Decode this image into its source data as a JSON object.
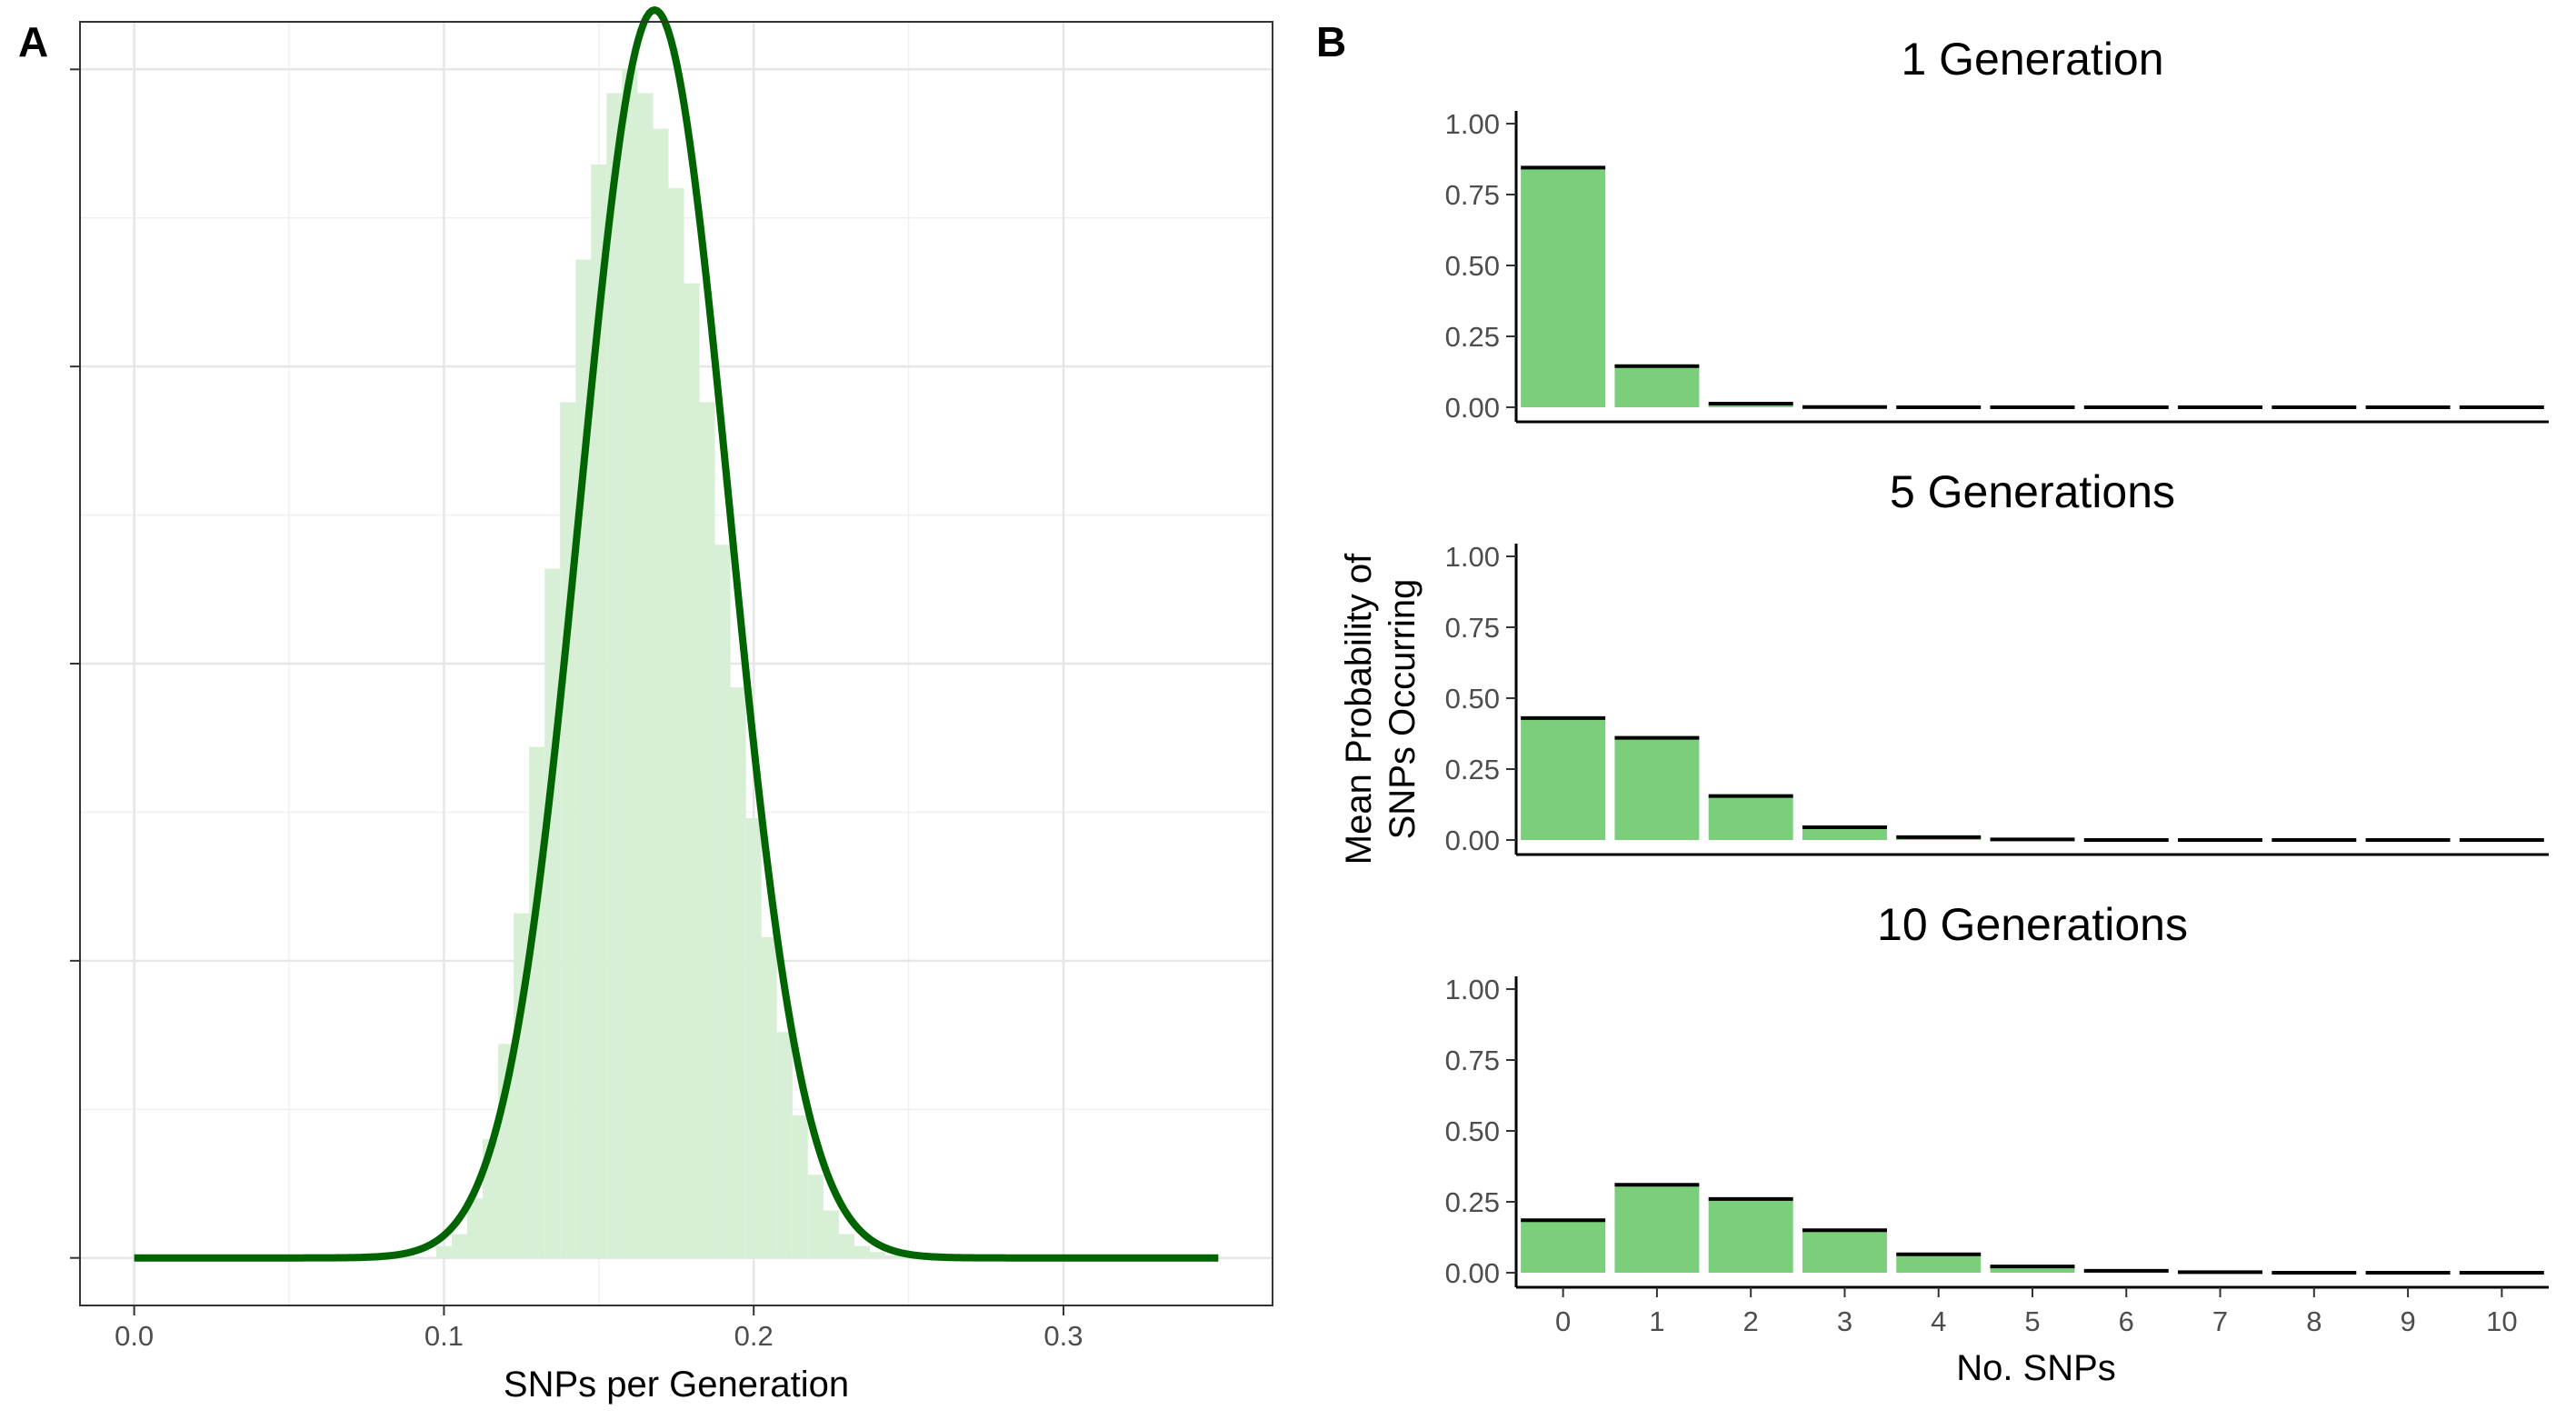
{
  "chart_data": [
    {
      "panel": "A",
      "type": "area",
      "xlabel": "SNPs per Generation",
      "ylabel": "",
      "xlim": [
        -0.0175,
        0.3675
      ],
      "ylim": [
        -0.04,
        1.04
      ],
      "x_ticks": [
        0.0,
        0.1,
        0.2,
        0.3
      ],
      "x_tick_labels": [
        "0.0",
        "0.1",
        "0.2",
        "0.3"
      ],
      "y_ticks": [
        0.0,
        0.25,
        0.5,
        0.75,
        1.0
      ],
      "grid": true,
      "histogram": {
        "color": "#d7efd5",
        "x": [
          0.1,
          0.105,
          0.11,
          0.115,
          0.12,
          0.125,
          0.13,
          0.135,
          0.14,
          0.145,
          0.15,
          0.155,
          0.16,
          0.165,
          0.17,
          0.175,
          0.18,
          0.185,
          0.19,
          0.195,
          0.2,
          0.205,
          0.21,
          0.215,
          0.22,
          0.225,
          0.23,
          0.235,
          0.24,
          0.245
        ],
        "values": [
          0.01,
          0.02,
          0.05,
          0.1,
          0.18,
          0.29,
          0.43,
          0.58,
          0.72,
          0.84,
          0.92,
          0.98,
          1.0,
          0.98,
          0.95,
          0.9,
          0.82,
          0.72,
          0.6,
          0.48,
          0.37,
          0.27,
          0.19,
          0.12,
          0.07,
          0.04,
          0.02,
          0.01,
          0.005,
          0.002
        ]
      },
      "curve": {
        "color": "#006400",
        "distribution": "normal",
        "mean": 0.168,
        "sd": 0.024,
        "x_range": [
          0.0,
          0.35
        ],
        "peak": 1.05
      }
    },
    {
      "panel": "B",
      "type": "bar",
      "ylabel": "Mean Probability of\nSNPs Occurring",
      "xlabel": "No. SNPs",
      "ylim": [
        0,
        1.0
      ],
      "y_tick_labels": [
        "0.00",
        "0.25",
        "0.50",
        "0.75",
        "1.00"
      ],
      "categories": [
        "0",
        "1",
        "2",
        "3",
        "4",
        "5",
        "6",
        "7",
        "8",
        "9",
        "10"
      ],
      "bar_color": "#7bcf7b",
      "series": [
        {
          "name": "1 Generation",
          "values": [
            0.845,
            0.145,
            0.013,
            0.001,
            0,
            0,
            0,
            0,
            0,
            0,
            0
          ]
        },
        {
          "name": "5 Generations",
          "values": [
            0.43,
            0.36,
            0.155,
            0.045,
            0.01,
            0.002,
            0,
            0,
            0,
            0,
            0
          ]
        },
        {
          "name": "10 Generations",
          "values": [
            0.185,
            0.31,
            0.26,
            0.15,
            0.065,
            0.022,
            0.007,
            0.002,
            0,
            0,
            0
          ]
        }
      ]
    }
  ]
}
